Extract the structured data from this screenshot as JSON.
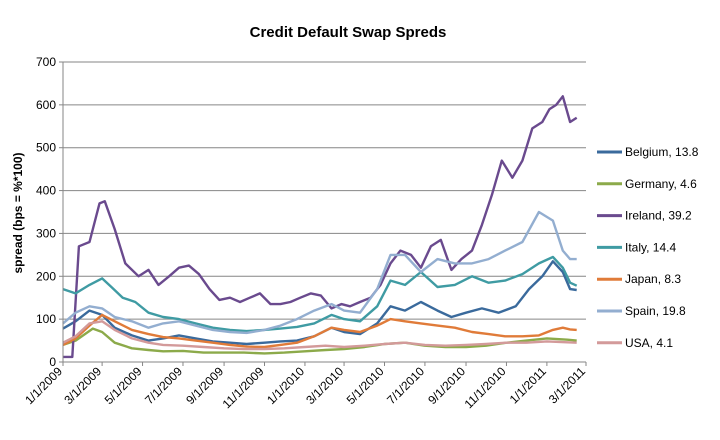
{
  "chart_data": {
    "type": "line",
    "title": "Credit Default Swap Spreds",
    "xlabel": "",
    "ylabel": "spread (bps = %*100)",
    "ylim": [
      0,
      700
    ],
    "y_ticks": [
      0,
      100,
      200,
      300,
      400,
      500,
      600,
      700
    ],
    "xlim": [
      "2009-01-01",
      "2011-03-01"
    ],
    "x_ticks": [
      "2009-01-01",
      "2009-03-01",
      "2009-05-01",
      "2009-07-01",
      "2009-09-01",
      "2009-11-01",
      "2010-01-01",
      "2010-03-01",
      "2010-05-01",
      "2010-07-01",
      "2010-09-01",
      "2010-11-01",
      "2011-01-01",
      "2011-03-01"
    ],
    "x_tick_labels": [
      "1/1/2009",
      "3/1/2009",
      "5/1/2009",
      "7/1/2009",
      "9/1/2009",
      "11/1/2009",
      "1/1/2010",
      "3/1/2010",
      "5/1/2010",
      "7/1/2010",
      "9/1/2010",
      "11/1/2010",
      "1/1/2011",
      "3/1/2011"
    ],
    "grid": "horizontal",
    "legend_position": "right",
    "series": [
      {
        "name": "Belgium, 13.8",
        "color": "#3A6A9C",
        "x": [
          "2009-01-01",
          "2009-01-20",
          "2009-02-10",
          "2009-03-01",
          "2009-03-20",
          "2009-04-15",
          "2009-05-10",
          "2009-06-01",
          "2009-06-25",
          "2009-07-20",
          "2009-08-15",
          "2009-09-10",
          "2009-10-05",
          "2009-11-01",
          "2009-11-25",
          "2009-12-20",
          "2010-01-15",
          "2010-02-10",
          "2010-03-01",
          "2010-03-25",
          "2010-04-20",
          "2010-05-10",
          "2010-06-01",
          "2010-06-25",
          "2010-07-20",
          "2010-08-10",
          "2010-09-01",
          "2010-09-25",
          "2010-10-20",
          "2010-11-15",
          "2010-12-05",
          "2010-12-25",
          "2011-01-10",
          "2011-01-25",
          "2011-02-05",
          "2011-02-15"
        ],
        "y": [
          78,
          95,
          120,
          110,
          80,
          62,
          50,
          55,
          62,
          55,
          48,
          45,
          42,
          45,
          48,
          50,
          60,
          80,
          70,
          65,
          90,
          130,
          120,
          140,
          120,
          105,
          115,
          125,
          115,
          130,
          170,
          200,
          235,
          210,
          170,
          168
        ]
      },
      {
        "name": "Germany, 4.6",
        "color": "#8CAA4A",
        "x": [
          "2009-01-01",
          "2009-01-20",
          "2009-02-15",
          "2009-03-01",
          "2009-03-20",
          "2009-04-15",
          "2009-05-10",
          "2009-06-01",
          "2009-07-01",
          "2009-08-01",
          "2009-09-01",
          "2009-10-01",
          "2009-11-01",
          "2009-12-01",
          "2010-01-01",
          "2010-02-01",
          "2010-03-01",
          "2010-04-01",
          "2010-05-01",
          "2010-06-01",
          "2010-07-01",
          "2010-08-01",
          "2010-09-01",
          "2010-10-01",
          "2010-11-01",
          "2010-12-01",
          "2011-01-01",
          "2011-02-01",
          "2011-02-15"
        ],
        "y": [
          40,
          50,
          78,
          70,
          45,
          32,
          28,
          25,
          26,
          22,
          22,
          22,
          20,
          22,
          25,
          28,
          30,
          35,
          42,
          45,
          38,
          35,
          35,
          38,
          45,
          50,
          55,
          52,
          50
        ]
      },
      {
        "name": "Ireland, 39.2",
        "color": "#6A4A8E",
        "x": [
          "2009-01-01",
          "2009-01-15",
          "2009-01-25",
          "2009-02-10",
          "2009-02-25",
          "2009-03-05",
          "2009-03-20",
          "2009-04-05",
          "2009-04-25",
          "2009-05-10",
          "2009-05-25",
          "2009-06-10",
          "2009-06-25",
          "2009-07-10",
          "2009-07-25",
          "2009-08-10",
          "2009-08-25",
          "2009-09-10",
          "2009-09-25",
          "2009-10-10",
          "2009-10-25",
          "2009-11-10",
          "2009-11-25",
          "2009-12-10",
          "2009-12-25",
          "2010-01-10",
          "2010-01-25",
          "2010-02-10",
          "2010-02-25",
          "2010-03-10",
          "2010-03-25",
          "2010-04-10",
          "2010-04-25",
          "2010-05-10",
          "2010-05-25",
          "2010-06-10",
          "2010-06-25",
          "2010-07-10",
          "2010-07-25",
          "2010-08-10",
          "2010-08-25",
          "2010-09-10",
          "2010-09-25",
          "2010-10-10",
          "2010-10-25",
          "2010-11-10",
          "2010-11-25",
          "2010-12-10",
          "2010-12-25",
          "2011-01-05",
          "2011-01-15",
          "2011-01-25",
          "2011-02-05",
          "2011-02-15"
        ],
        "y": [
          12,
          12,
          270,
          280,
          370,
          375,
          310,
          230,
          200,
          215,
          180,
          200,
          220,
          225,
          205,
          170,
          145,
          150,
          140,
          150,
          160,
          135,
          135,
          140,
          150,
          160,
          155,
          125,
          135,
          130,
          140,
          150,
          180,
          230,
          260,
          250,
          220,
          270,
          285,
          215,
          240,
          260,
          320,
          390,
          470,
          430,
          470,
          545,
          560,
          590,
          600,
          620,
          560,
          570
        ]
      },
      {
        "name": "Italy, 14.4",
        "color": "#3F9BA3",
        "x": [
          "2009-01-01",
          "2009-01-20",
          "2009-02-10",
          "2009-03-01",
          "2009-03-15",
          "2009-04-01",
          "2009-04-20",
          "2009-05-10",
          "2009-06-01",
          "2009-06-25",
          "2009-07-20",
          "2009-08-15",
          "2009-09-10",
          "2009-10-05",
          "2009-11-01",
          "2009-11-25",
          "2009-12-20",
          "2010-01-15",
          "2010-02-10",
          "2010-03-01",
          "2010-03-25",
          "2010-04-20",
          "2010-05-10",
          "2010-06-01",
          "2010-06-25",
          "2010-07-20",
          "2010-08-15",
          "2010-09-10",
          "2010-10-05",
          "2010-10-30",
          "2010-11-25",
          "2010-12-20",
          "2011-01-10",
          "2011-01-25",
          "2011-02-05",
          "2011-02-15"
        ],
        "y": [
          170,
          160,
          180,
          195,
          175,
          150,
          140,
          115,
          105,
          100,
          90,
          80,
          75,
          72,
          75,
          78,
          82,
          90,
          110,
          100,
          95,
          130,
          190,
          180,
          210,
          175,
          180,
          200,
          185,
          190,
          205,
          230,
          245,
          220,
          185,
          178
        ]
      },
      {
        "name": "Japan, 8.3",
        "color": "#E07B39",
        "x": [
          "2009-01-01",
          "2009-01-20",
          "2009-02-10",
          "2009-03-01",
          "2009-03-20",
          "2009-04-15",
          "2009-05-10",
          "2009-06-01",
          "2009-06-25",
          "2009-07-20",
          "2009-08-15",
          "2009-09-10",
          "2009-10-05",
          "2009-11-01",
          "2009-11-25",
          "2009-12-20",
          "2010-01-15",
          "2010-02-10",
          "2010-03-01",
          "2010-03-25",
          "2010-04-20",
          "2010-05-10",
          "2010-06-01",
          "2010-06-25",
          "2010-07-20",
          "2010-08-15",
          "2010-09-10",
          "2010-10-05",
          "2010-10-30",
          "2010-11-25",
          "2010-12-20",
          "2011-01-10",
          "2011-01-25",
          "2011-02-05",
          "2011-02-15"
        ],
        "y": [
          40,
          55,
          85,
          110,
          95,
          75,
          65,
          58,
          55,
          50,
          45,
          40,
          36,
          35,
          40,
          45,
          60,
          80,
          75,
          70,
          85,
          100,
          95,
          90,
          85,
          80,
          70,
          65,
          60,
          60,
          62,
          75,
          80,
          76,
          75
        ]
      },
      {
        "name": "Spain, 19.8",
        "color": "#93AED0",
        "x": [
          "2009-01-01",
          "2009-01-20",
          "2009-02-10",
          "2009-03-01",
          "2009-03-20",
          "2009-04-15",
          "2009-05-10",
          "2009-06-01",
          "2009-06-25",
          "2009-07-20",
          "2009-08-15",
          "2009-09-10",
          "2009-10-05",
          "2009-11-01",
          "2009-11-25",
          "2009-12-20",
          "2010-01-15",
          "2010-02-10",
          "2010-03-01",
          "2010-03-25",
          "2010-04-20",
          "2010-05-10",
          "2010-06-01",
          "2010-06-25",
          "2010-07-20",
          "2010-08-15",
          "2010-09-10",
          "2010-10-05",
          "2010-10-30",
          "2010-11-25",
          "2010-12-20",
          "2011-01-10",
          "2011-01-25",
          "2011-02-05",
          "2011-02-15"
        ],
        "y": [
          90,
          115,
          130,
          125,
          105,
          95,
          80,
          90,
          95,
          85,
          75,
          70,
          68,
          75,
          85,
          100,
          120,
          135,
          120,
          115,
          170,
          250,
          250,
          210,
          240,
          230,
          230,
          240,
          260,
          280,
          350,
          330,
          260,
          240,
          240
        ]
      },
      {
        "name": "USA, 4.1",
        "color": "#D39A9A",
        "x": [
          "2009-01-01",
          "2009-01-20",
          "2009-02-10",
          "2009-03-01",
          "2009-03-20",
          "2009-04-15",
          "2009-05-10",
          "2009-06-01",
          "2009-07-01",
          "2009-08-01",
          "2009-09-01",
          "2009-10-01",
          "2009-11-01",
          "2009-12-01",
          "2010-01-01",
          "2010-02-01",
          "2010-03-01",
          "2010-04-01",
          "2010-05-01",
          "2010-06-01",
          "2010-07-01",
          "2010-08-01",
          "2010-09-01",
          "2010-10-01",
          "2010-11-01",
          "2010-12-01",
          "2011-01-01",
          "2011-02-01",
          "2011-02-15"
        ],
        "y": [
          45,
          60,
          90,
          95,
          75,
          55,
          45,
          40,
          38,
          35,
          32,
          30,
          30,
          32,
          35,
          38,
          35,
          38,
          42,
          45,
          40,
          38,
          40,
          42,
          45,
          45,
          48,
          46,
          45
        ]
      }
    ]
  }
}
